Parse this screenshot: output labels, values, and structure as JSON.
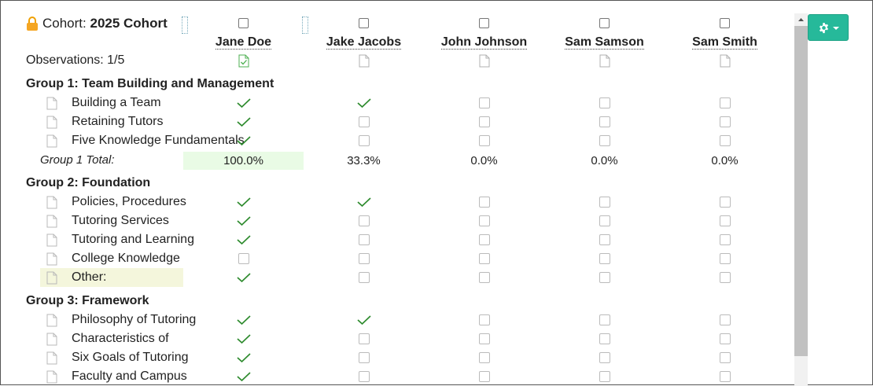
{
  "header": {
    "cohort_label": "Cohort:",
    "cohort_name": "2025 Cohort",
    "observations": "Observations: 1/5"
  },
  "columns": [
    {
      "name": "Jane Doe",
      "observed": true
    },
    {
      "name": "Jake Jacobs",
      "observed": false
    },
    {
      "name": "John Johnson",
      "observed": false
    },
    {
      "name": "Sam Samson",
      "observed": false
    },
    {
      "name": "Sam Smith",
      "observed": false
    }
  ],
  "groups": [
    {
      "title": "Group 1: Team Building and Management",
      "items": [
        {
          "label": "Building a Team",
          "checks": [
            true,
            true,
            false,
            false,
            false
          ]
        },
        {
          "label": "Retaining Tutors",
          "checks": [
            true,
            false,
            false,
            false,
            false
          ]
        },
        {
          "label": "Five Knowledge Fundamentals",
          "checks": [
            true,
            false,
            false,
            false,
            false
          ]
        }
      ],
      "total_label": "Group 1 Total:",
      "totals": [
        "100.0%",
        "33.3%",
        "0.0%",
        "0.0%",
        "0.0%"
      ]
    },
    {
      "title": "Group 2: Foundation",
      "items": [
        {
          "label": "Policies, Procedures",
          "checks": [
            true,
            true,
            false,
            false,
            false
          ]
        },
        {
          "label": "Tutoring Services",
          "checks": [
            true,
            false,
            false,
            false,
            false
          ]
        },
        {
          "label": "Tutoring and Learning",
          "checks": [
            true,
            false,
            false,
            false,
            false
          ]
        },
        {
          "label": "College Knowledge",
          "checks": [
            false,
            false,
            false,
            false,
            false
          ]
        },
        {
          "label": "Other:",
          "checks": [
            true,
            false,
            false,
            false,
            false
          ],
          "highlight": true
        }
      ]
    },
    {
      "title": "Group 3: Framework",
      "items": [
        {
          "label": "Philosophy of Tutoring",
          "checks": [
            true,
            true,
            false,
            false,
            false
          ]
        },
        {
          "label": "Characteristics of",
          "checks": [
            true,
            false,
            false,
            false,
            false
          ]
        },
        {
          "label": "Six Goals of Tutoring",
          "checks": [
            true,
            false,
            false,
            false,
            false
          ]
        },
        {
          "label": "Faculty and Campus",
          "checks": [
            true,
            false,
            false,
            false,
            false
          ]
        }
      ]
    }
  ],
  "colors": {
    "accent": "#26b99a",
    "check": "#2e8b2e",
    "total_highlight": "#e9fbe5",
    "row_highlight": "#f4f6dc"
  }
}
